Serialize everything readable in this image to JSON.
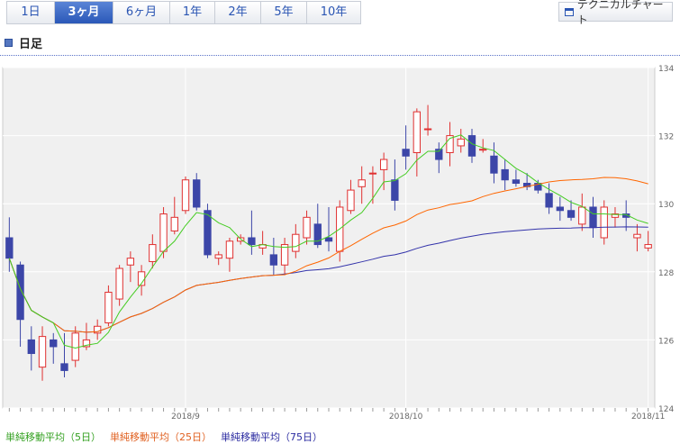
{
  "tabs": [
    "1日",
    "3ヶ月",
    "6ヶ月",
    "1年",
    "2年",
    "5年",
    "10年"
  ],
  "active_tab": "3ヶ月",
  "technical_chart_button": "テクニカルチャート",
  "section_title": "日足",
  "colors": {
    "bull": "#e03030",
    "bear": "#3c46a8",
    "ma5": "#44cc22",
    "ma25": "#ff6600",
    "ma75": "#3333aa",
    "tab_active": "#2a58b8",
    "plot_bg": "#f0f0f0"
  },
  "legend": {
    "ma5": "単純移動平均（5日）",
    "ma25": "単純移動平均（25日）",
    "ma75": "単純移動平均（75日）"
  },
  "chart_data": {
    "type": "candlestick",
    "ylim": [
      124,
      134
    ],
    "y_ticks": [
      "124",
      "126",
      "128",
      "130",
      "132",
      "134"
    ],
    "x_ticks": [
      {
        "label": "2018/9",
        "index": 16
      },
      {
        "label": "2018/10",
        "index": 36
      },
      {
        "label": "2018/11",
        "index": 58
      }
    ],
    "candles": [
      [
        129.0,
        129.6,
        128.0,
        128.4
      ],
      [
        128.2,
        128.3,
        125.8,
        126.6
      ],
      [
        126.0,
        126.4,
        125.1,
        125.6
      ],
      [
        125.2,
        126.4,
        124.8,
        126.1
      ],
      [
        126.0,
        126.2,
        125.3,
        125.8
      ],
      [
        125.3,
        126.2,
        124.9,
        125.1
      ],
      [
        125.4,
        126.4,
        125.2,
        126.2
      ],
      [
        125.8,
        126.5,
        125.7,
        126.0
      ],
      [
        126.2,
        126.6,
        126.0,
        126.4
      ],
      [
        126.5,
        127.6,
        126.4,
        127.4
      ],
      [
        127.2,
        128.2,
        127.0,
        128.1
      ],
      [
        128.2,
        128.6,
        127.7,
        128.4
      ],
      [
        127.6,
        128.2,
        127.3,
        128.0
      ],
      [
        128.3,
        129.1,
        128.1,
        128.8
      ],
      [
        128.6,
        129.9,
        128.4,
        129.7
      ],
      [
        129.2,
        130.2,
        129.1,
        129.6
      ],
      [
        129.8,
        130.8,
        129.7,
        130.7
      ],
      [
        130.7,
        130.9,
        129.8,
        129.9
      ],
      [
        129.8,
        130.0,
        128.4,
        128.5
      ],
      [
        128.4,
        128.6,
        128.2,
        128.5
      ],
      [
        128.4,
        129.0,
        128.0,
        128.9
      ],
      [
        128.9,
        129.1,
        128.8,
        129.0
      ],
      [
        129.0,
        129.8,
        128.5,
        128.8
      ],
      [
        128.7,
        129.2,
        128.5,
        128.8
      ],
      [
        128.5,
        129.0,
        127.9,
        128.2
      ],
      [
        128.2,
        129.0,
        127.9,
        128.8
      ],
      [
        128.6,
        129.4,
        128.4,
        129.1
      ],
      [
        129.0,
        129.8,
        128.8,
        129.6
      ],
      [
        129.4,
        130.0,
        128.7,
        128.8
      ],
      [
        129.0,
        129.9,
        128.6,
        128.9
      ],
      [
        128.6,
        130.1,
        128.3,
        129.9
      ],
      [
        129.8,
        130.7,
        129.7,
        130.4
      ],
      [
        130.5,
        131.1,
        130.0,
        130.7
      ],
      [
        130.9,
        131.1,
        130.0,
        130.9
      ],
      [
        131.0,
        131.5,
        130.4,
        131.3
      ],
      [
        130.7,
        131.3,
        129.8,
        130.1
      ],
      [
        131.6,
        132.3,
        131.0,
        131.4
      ],
      [
        131.5,
        132.8,
        130.8,
        132.7
      ],
      [
        132.2,
        132.9,
        132.0,
        132.2
      ],
      [
        131.6,
        131.8,
        130.9,
        131.3
      ],
      [
        131.5,
        132.4,
        131.1,
        132.0
      ],
      [
        131.7,
        132.2,
        131.5,
        131.9
      ],
      [
        132.0,
        132.2,
        131.2,
        131.4
      ],
      [
        131.6,
        131.9,
        131.5,
        131.6
      ],
      [
        131.4,
        131.8,
        130.6,
        130.9
      ],
      [
        131.0,
        131.3,
        130.4,
        130.7
      ],
      [
        130.7,
        131.0,
        130.5,
        130.6
      ],
      [
        130.6,
        130.9,
        130.4,
        130.5
      ],
      [
        130.6,
        130.7,
        130.3,
        130.4
      ],
      [
        130.3,
        130.6,
        129.7,
        129.9
      ],
      [
        129.9,
        130.2,
        129.5,
        129.8
      ],
      [
        129.8,
        130.1,
        129.5,
        129.6
      ],
      [
        129.4,
        130.3,
        129.2,
        129.9
      ],
      [
        129.9,
        130.2,
        129.0,
        129.3
      ],
      [
        129.0,
        130.1,
        128.8,
        129.9
      ],
      [
        129.6,
        129.9,
        129.3,
        129.7
      ],
      [
        129.7,
        130.1,
        129.2,
        129.6
      ],
      [
        129.0,
        129.4,
        128.6,
        129.1
      ],
      [
        128.7,
        129.2,
        128.6,
        128.8
      ]
    ]
  }
}
